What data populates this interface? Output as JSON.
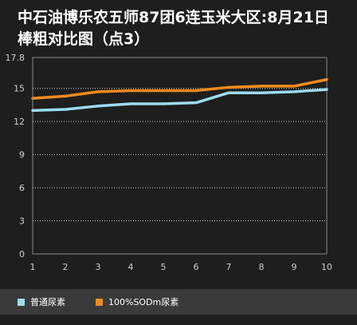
{
  "title": {
    "line1": "中石油博乐农五师87团6连玉米大区:8月21日",
    "line2": "棒粗对比图（点3）"
  },
  "chart_data": {
    "type": "line",
    "x": [
      1,
      2,
      3,
      4,
      5,
      6,
      7,
      8,
      9,
      10
    ],
    "y_ticks": [
      "0",
      "3",
      "6",
      "9",
      "12",
      "15",
      "17.8"
    ],
    "ylim": [
      0,
      17.8
    ],
    "xlim": [
      1,
      10
    ],
    "grid": true,
    "legend_position": "bottom-left",
    "series": [
      {
        "name": "普通尿素",
        "color": "#9ddcf2",
        "values": [
          13.0,
          13.1,
          13.4,
          13.6,
          13.6,
          13.7,
          14.6,
          14.6,
          14.7,
          14.9
        ]
      },
      {
        "name": "100%SODm尿素",
        "color": "#f08a1e",
        "values": [
          14.1,
          14.3,
          14.7,
          14.8,
          14.8,
          14.8,
          15.1,
          15.2,
          15.2,
          15.8
        ]
      }
    ]
  }
}
